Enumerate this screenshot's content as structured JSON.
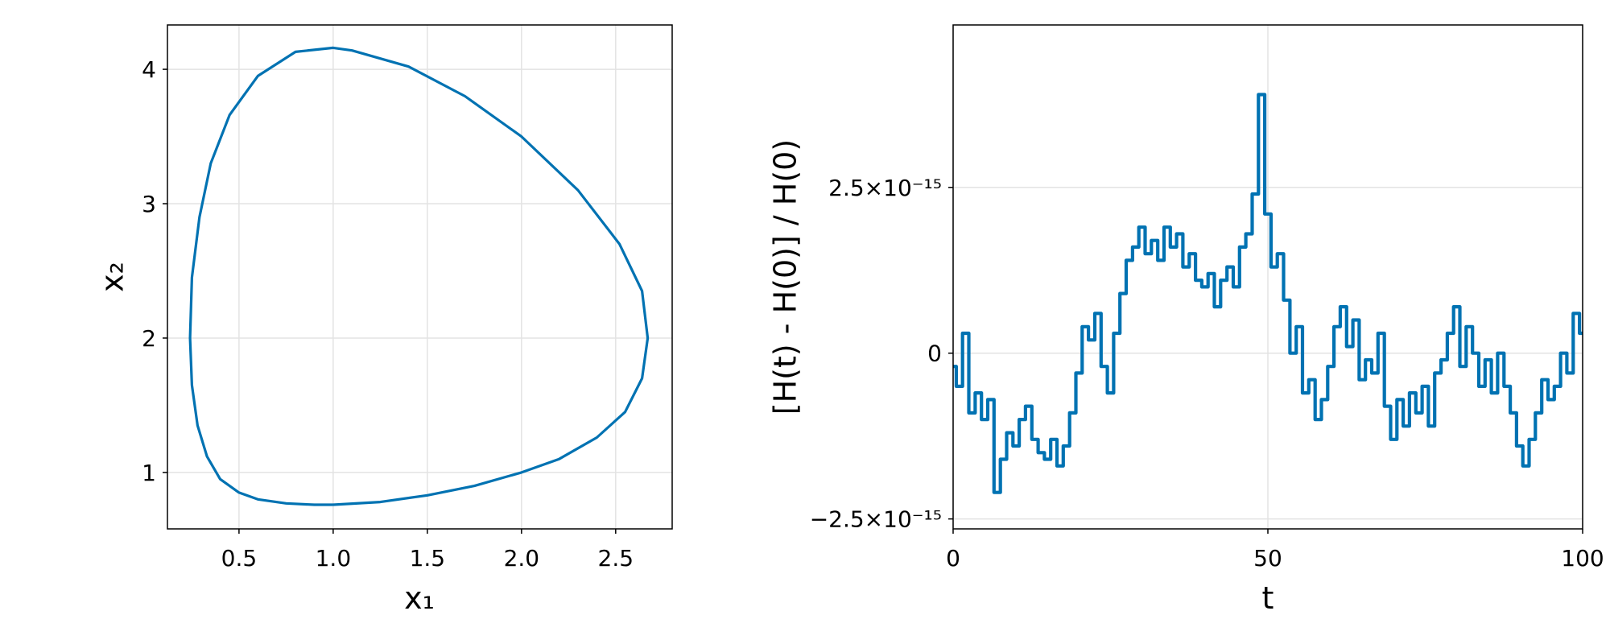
{
  "chart_data": [
    {
      "type": "line",
      "xlabel": "x₁",
      "ylabel": "x₂",
      "xlim": [
        0.12,
        2.8
      ],
      "ylim": [
        0.58,
        4.33
      ],
      "x_ticks": [
        0.5,
        1.0,
        1.5,
        2.0,
        2.5
      ],
      "x_tick_labels": [
        "0.5",
        "1.0",
        "1.5",
        "2.0",
        "2.5"
      ],
      "y_ticks": [
        1,
        2,
        3,
        4
      ],
      "y_tick_labels": [
        "1",
        "2",
        "3",
        "4"
      ],
      "grid": true,
      "color": "#0072b2",
      "series": [
        {
          "x": [
            1.0,
            1.25,
            1.5,
            1.75,
            2.0,
            2.2,
            2.4,
            2.55,
            2.64,
            2.67,
            2.64,
            2.52,
            2.3,
            2.0,
            1.7,
            1.4,
            1.1,
            1.0,
            0.8,
            0.6,
            0.45,
            0.35,
            0.29,
            0.25,
            0.24,
            0.25,
            0.28,
            0.33,
            0.4,
            0.5,
            0.6,
            0.75,
            0.9,
            1.0
          ],
          "y": [
            0.76,
            0.78,
            0.83,
            0.9,
            1.0,
            1.1,
            1.26,
            1.45,
            1.7,
            2.0,
            2.35,
            2.7,
            3.1,
            3.5,
            3.8,
            4.02,
            4.14,
            4.16,
            4.13,
            3.95,
            3.66,
            3.3,
            2.9,
            2.45,
            2.0,
            1.65,
            1.35,
            1.12,
            0.95,
            0.85,
            0.8,
            0.77,
            0.76,
            0.76
          ]
        }
      ]
    },
    {
      "type": "line",
      "xlabel": "t",
      "ylabel": "[H(t) - H(0)] / H(0)",
      "xlim": [
        0,
        100
      ],
      "ylim": [
        -2.65e-15,
        4.95e-15
      ],
      "x_ticks": [
        0,
        50,
        100
      ],
      "x_tick_labels": [
        "0",
        "50",
        "100"
      ],
      "y_ticks": [
        -2.5e-15,
        0,
        2.5e-15
      ],
      "y_tick_labels": [
        "−2.5×10⁻¹⁵",
        "0",
        "2.5×10⁻¹⁵"
      ],
      "grid": true,
      "color": "#0072b2",
      "series": [
        {
          "x": [
            0,
            1,
            2,
            3,
            4,
            5,
            6,
            7,
            8,
            9,
            10,
            11,
            12,
            13,
            14,
            15,
            16,
            17,
            18,
            19,
            20,
            21,
            22,
            23,
            24,
            25,
            26,
            27,
            28,
            29,
            30,
            31,
            32,
            33,
            34,
            35,
            36,
            37,
            38,
            39,
            40,
            41,
            42,
            43,
            44,
            45,
            46,
            47,
            48,
            49,
            50,
            51,
            52,
            53,
            54,
            55,
            56,
            57,
            58,
            59,
            60,
            61,
            62,
            63,
            64,
            65,
            66,
            67,
            68,
            69,
            70,
            71,
            72,
            73,
            74,
            75,
            76,
            77,
            78,
            79,
            80,
            81,
            82,
            83,
            84,
            85,
            86,
            87,
            88,
            89,
            90,
            91,
            92,
            93,
            94,
            95,
            96,
            97,
            98,
            99,
            100
          ],
          "y": [
            -2e-16,
            -5e-16,
            3e-16,
            -9e-16,
            -6e-16,
            -1e-15,
            -7e-16,
            -2.1e-15,
            -1.6e-15,
            -1.2e-15,
            -1.4e-15,
            -1e-15,
            -8e-16,
            -1.3e-15,
            -1.5e-15,
            -1.6e-15,
            -1.3e-15,
            -1.7e-15,
            -1.4e-15,
            -9e-16,
            -3e-16,
            4e-16,
            2e-16,
            6e-16,
            -2e-16,
            -6e-16,
            3e-16,
            9e-16,
            1.4e-15,
            1.6e-15,
            1.9e-15,
            1.5e-15,
            1.7e-15,
            1.4e-15,
            1.9e-15,
            1.6e-15,
            1.8e-15,
            1.3e-15,
            1.5e-15,
            1.1e-15,
            1e-15,
            1.2e-15,
            7e-16,
            1.1e-15,
            1.3e-15,
            1e-15,
            1.6e-15,
            1.8e-15,
            2.4e-15,
            3.9e-15,
            2.1e-15,
            1.3e-15,
            1.5e-15,
            8e-16,
            0.0,
            4e-16,
            -6e-16,
            -4e-16,
            -1e-15,
            -7e-16,
            -2e-16,
            4e-16,
            7e-16,
            1e-16,
            5e-16,
            -4e-16,
            -1e-16,
            -3e-16,
            3e-16,
            -8e-16,
            -1.3e-15,
            -7e-16,
            -1.1e-15,
            -6e-16,
            -9e-16,
            -5e-16,
            -1.1e-15,
            -3e-16,
            -1e-16,
            3e-16,
            7e-16,
            -2e-16,
            4e-16,
            0.0,
            -5e-16,
            -1e-16,
            -6e-16,
            0.0,
            -5e-16,
            -9e-16,
            -1.4e-15,
            -1.7e-15,
            -1.3e-15,
            -9e-16,
            -4e-16,
            -7e-16,
            -5e-16,
            0.0,
            -3e-16,
            6e-16,
            3e-16
          ]
        }
      ]
    }
  ]
}
